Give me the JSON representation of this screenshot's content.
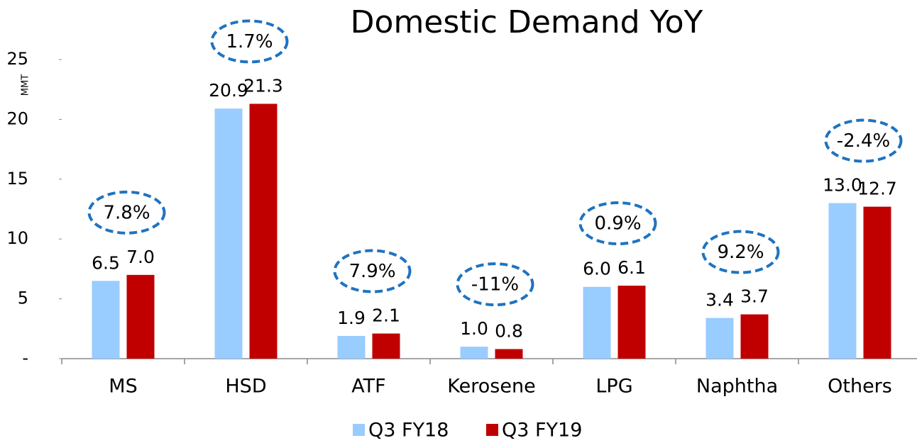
{
  "chart_data": {
    "type": "bar",
    "title": "Domestic Demand YoY",
    "y_label": "MMT",
    "categories": [
      "MS",
      "HSD",
      "ATF",
      "Kerosene",
      "LPG",
      "Naphtha",
      "Others"
    ],
    "series": [
      {
        "name": "Q3 FY18",
        "color": "#99ccff",
        "values": [
          6.5,
          20.9,
          1.9,
          1.0,
          6.0,
          3.4,
          13.0
        ],
        "value_labels": [
          "6.5",
          "20.9",
          "1.9",
          "1.0",
          "6.0",
          "3.4",
          "13.0"
        ]
      },
      {
        "name": "Q3 FY19",
        "color": "#c00000",
        "values": [
          7.0,
          21.3,
          2.1,
          0.8,
          6.1,
          3.7,
          12.7
        ],
        "value_labels": [
          "7.0",
          "21.3",
          "2.1",
          "0.8",
          "6.1",
          "3.7",
          "12.7"
        ]
      }
    ],
    "annotations": [
      "7.8%",
      "1.7%",
      "7.9%",
      "-11%",
      "0.9%",
      "9.2%",
      "-2.4%"
    ],
    "annotation_color": "#1f73c0",
    "ylim": [
      0,
      25
    ],
    "yticks": [
      {
        "value": 0,
        "label": "-"
      },
      5,
      10,
      15,
      20,
      25
    ],
    "grid": false,
    "legend": "bottom"
  }
}
